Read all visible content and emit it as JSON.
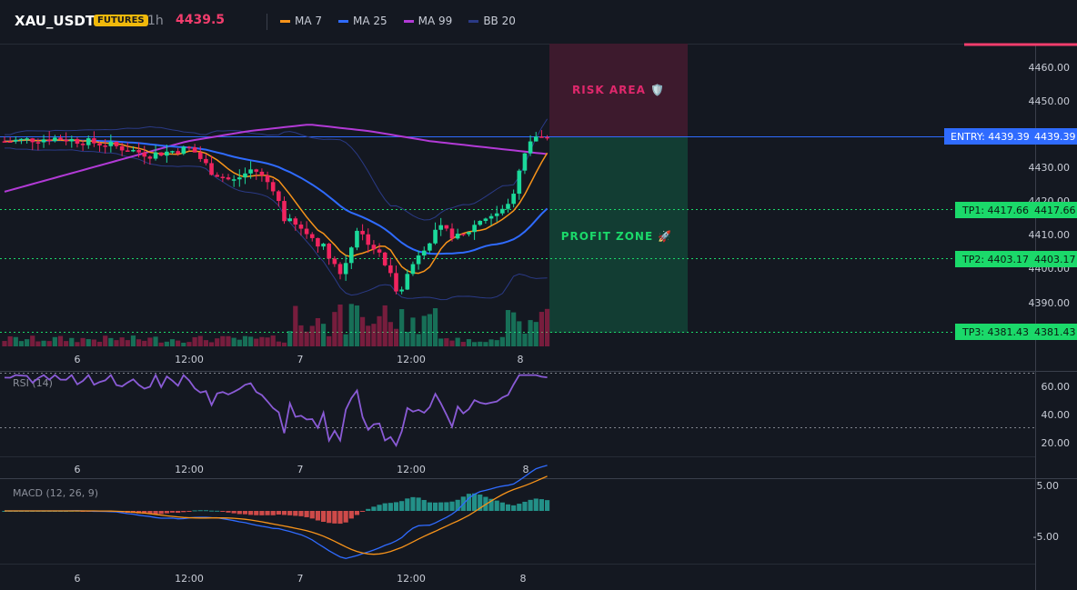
{
  "header": {
    "symbol": "XAU_USDT",
    "badge": "FUTURES",
    "timeframe": "1h",
    "price": "4439.5",
    "indicators": [
      {
        "label": "MA 7",
        "color": "#f7931a"
      },
      {
        "label": "MA 25",
        "color": "#2f6bff"
      },
      {
        "label": "MA 99",
        "color": "#b23ad6"
      },
      {
        "label": "BB 20",
        "color": "#2a3a86"
      }
    ]
  },
  "chart_data": {
    "type": "candlestick",
    "y_ticks": [
      "4460.00",
      "4450.00",
      "4440.00",
      "4430.00",
      "4420.00",
      "4410.00",
      "4400.00",
      "4390.00"
    ],
    "x_ticks": [
      "6",
      "12:00",
      "7",
      "12:00",
      "8"
    ],
    "zones": {
      "risk_label": "RISK AREA 🛡️",
      "profit_label": "PROFIT ZONE 🚀"
    },
    "levels": [
      {
        "name": "ENTRY",
        "label": "ENTRY: 4439.39",
        "value": "4439.39",
        "color": "#2f6bff"
      },
      {
        "name": "TP1",
        "label": "TP1: 4417.66",
        "value": "4417.66",
        "color": "#1bd96a"
      },
      {
        "name": "TP2",
        "label": "TP2: 4403.17",
        "value": "4403.17",
        "color": "#1bd96a"
      },
      {
        "name": "TP3",
        "label": "TP3: 4381.43",
        "value": "4381.43",
        "color": "#1bd96a"
      }
    ],
    "rsi": {
      "title": "RSI (14)",
      "ticks": [
        "60.00",
        "40.00",
        "20.00"
      ]
    },
    "macd": {
      "title": "MACD (12, 26, 9)",
      "ticks": [
        "5.00",
        "-5.00"
      ]
    }
  }
}
